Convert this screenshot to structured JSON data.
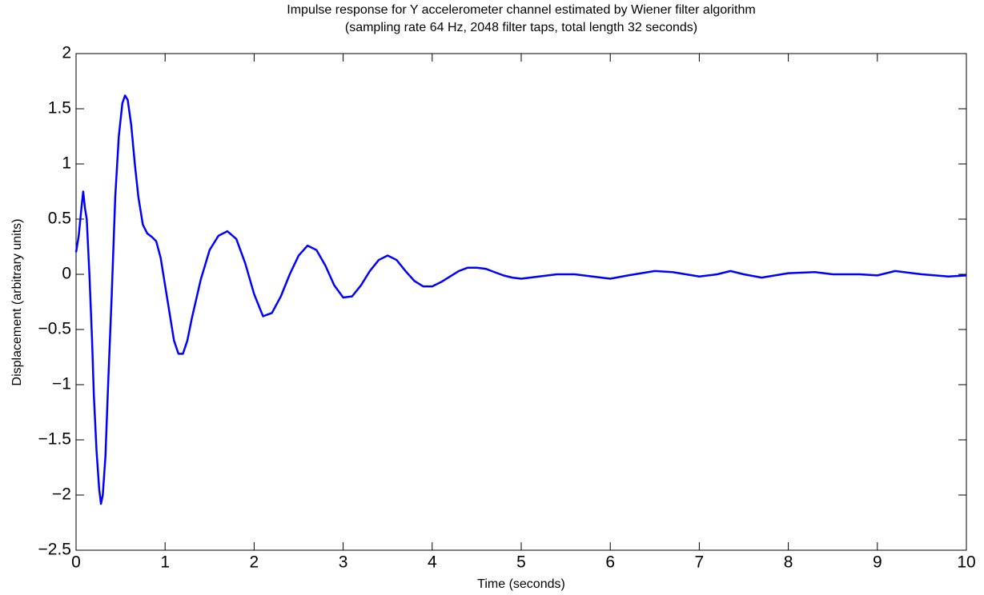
{
  "chart_data": {
    "type": "line",
    "title": "Impulse response for Y accelerometer channel estimated by Wiener filter algorithm",
    "subtitle": "(sampling rate 64 Hz, 2048 filter taps, total length 32 seconds)",
    "x_label": "Time (seconds)",
    "y_label": "Displacement (arbitrary units)",
    "xlim": [
      0,
      10
    ],
    "ylim": [
      -2.5,
      2
    ],
    "xticks": [
      0,
      1,
      2,
      3,
      4,
      5,
      6,
      7,
      8,
      9,
      10
    ],
    "yticks": [
      {
        "value": -2.5,
        "label": "−2.5"
      },
      {
        "value": -2,
        "label": "−2"
      },
      {
        "value": -1.5,
        "label": "−1.5"
      },
      {
        "value": -1,
        "label": "−1"
      },
      {
        "value": -0.5,
        "label": "−0.5"
      },
      0,
      0.5,
      1,
      1.5,
      2
    ],
    "grid": false,
    "x": [
      0,
      0.03,
      0.06,
      0.08,
      0.1,
      0.12,
      0.15,
      0.18,
      0.2,
      0.23,
      0.26,
      0.28,
      0.3,
      0.33,
      0.36,
      0.4,
      0.44,
      0.48,
      0.52,
      0.55,
      0.58,
      0.62,
      0.66,
      0.7,
      0.75,
      0.8,
      0.85,
      0.9,
      0.95,
      1.0,
      1.05,
      1.1,
      1.15,
      1.2,
      1.25,
      1.3,
      1.4,
      1.5,
      1.6,
      1.7,
      1.8,
      1.9,
      2.0,
      2.1,
      2.2,
      2.3,
      2.4,
      2.5,
      2.6,
      2.7,
      2.8,
      2.9,
      3.0,
      3.1,
      3.2,
      3.3,
      3.4,
      3.5,
      3.6,
      3.7,
      3.8,
      3.9,
      4.0,
      4.1,
      4.2,
      4.3,
      4.4,
      4.5,
      4.6,
      4.7,
      4.8,
      4.9,
      5.0,
      5.2,
      5.4,
      5.6,
      5.8,
      6.0,
      6.2,
      6.5,
      6.7,
      7.0,
      7.2,
      7.35,
      7.5,
      7.7,
      8.0,
      8.3,
      8.5,
      8.8,
      9.0,
      9.2,
      9.5,
      9.8,
      10.0
    ],
    "series": [
      {
        "color": "#0000ff",
        "values": [
          0.2,
          0.35,
          0.6,
          0.75,
          0.6,
          0.5,
          0.0,
          -0.6,
          -1.1,
          -1.6,
          -1.95,
          -2.08,
          -2.0,
          -1.65,
          -1.0,
          -0.2,
          0.7,
          1.25,
          1.55,
          1.62,
          1.58,
          1.35,
          1.0,
          0.7,
          0.45,
          0.37,
          0.34,
          0.3,
          0.15,
          -0.1,
          -0.35,
          -0.6,
          -0.72,
          -0.72,
          -0.6,
          -0.4,
          -0.05,
          0.22,
          0.35,
          0.39,
          0.32,
          0.1,
          -0.18,
          -0.38,
          -0.35,
          -0.2,
          0.0,
          0.17,
          0.26,
          0.22,
          0.08,
          -0.1,
          -0.21,
          -0.2,
          -0.1,
          0.03,
          0.13,
          0.17,
          0.13,
          0.03,
          -0.06,
          -0.11,
          -0.11,
          -0.07,
          -0.02,
          0.03,
          0.06,
          0.06,
          0.05,
          0.02,
          -0.01,
          -0.03,
          -0.04,
          -0.02,
          0.0,
          0.0,
          -0.02,
          -0.04,
          -0.01,
          0.03,
          0.02,
          -0.02,
          0.0,
          0.03,
          0.0,
          -0.03,
          0.01,
          0.02,
          0.0,
          0.0,
          -0.01,
          0.03,
          0.0,
          -0.02,
          -0.01
        ]
      }
    ]
  }
}
